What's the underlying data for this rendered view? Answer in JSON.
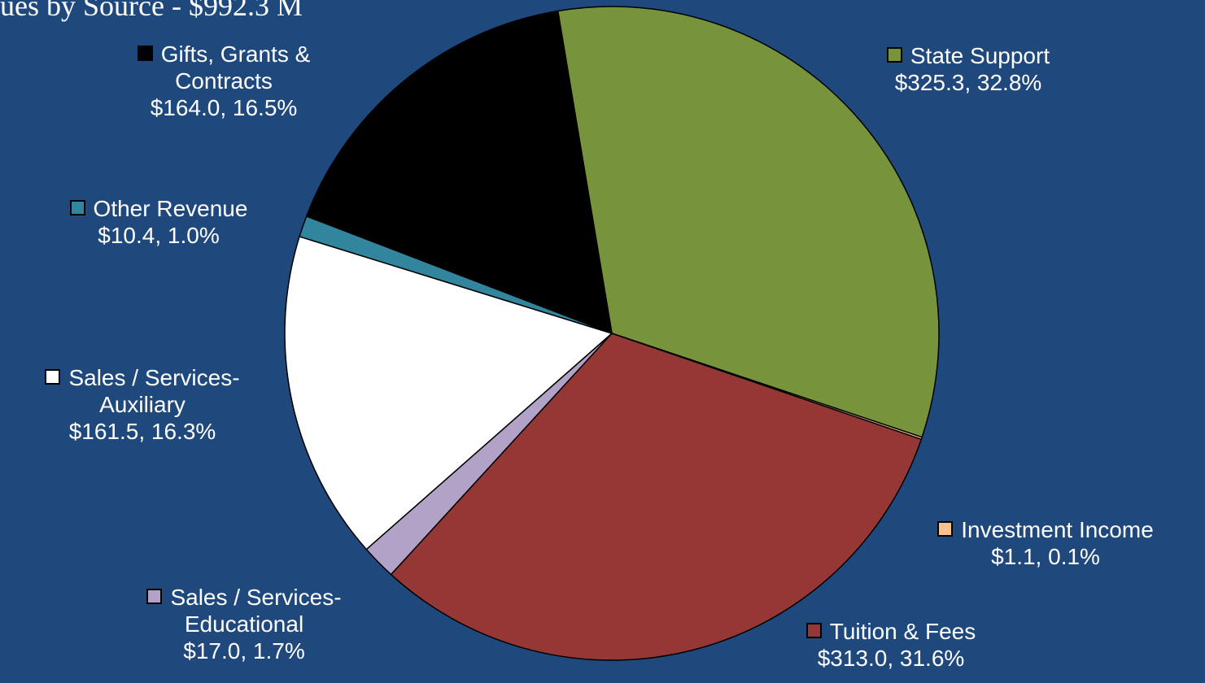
{
  "chart_data": {
    "type": "pie",
    "title": "ues by Source - $992.3 M",
    "categories": [
      "State Support",
      "Investment Income",
      "Tuition & Fees",
      "Sales / Services-Educational",
      "Sales / Services-Auxiliary",
      "Other Revenue",
      "Gifts, Grants & Contracts"
    ],
    "values": [
      325.3,
      1.1,
      313.0,
      17.0,
      161.5,
      10.4,
      164.0
    ],
    "value_labels": [
      "$325.3,  32.8%",
      "$1.1, 0.1%",
      "$313.0, 31.6%",
      "$17.0, 1.7%",
      "$161.5, 16.3%",
      "$10.4, 1.0%",
      "$164.0, 16.5%"
    ],
    "colors": [
      "#77933c",
      "#fac090",
      "#953735",
      "#b3a2c7",
      "#ffffff",
      "#31859c",
      "#000000"
    ]
  }
}
